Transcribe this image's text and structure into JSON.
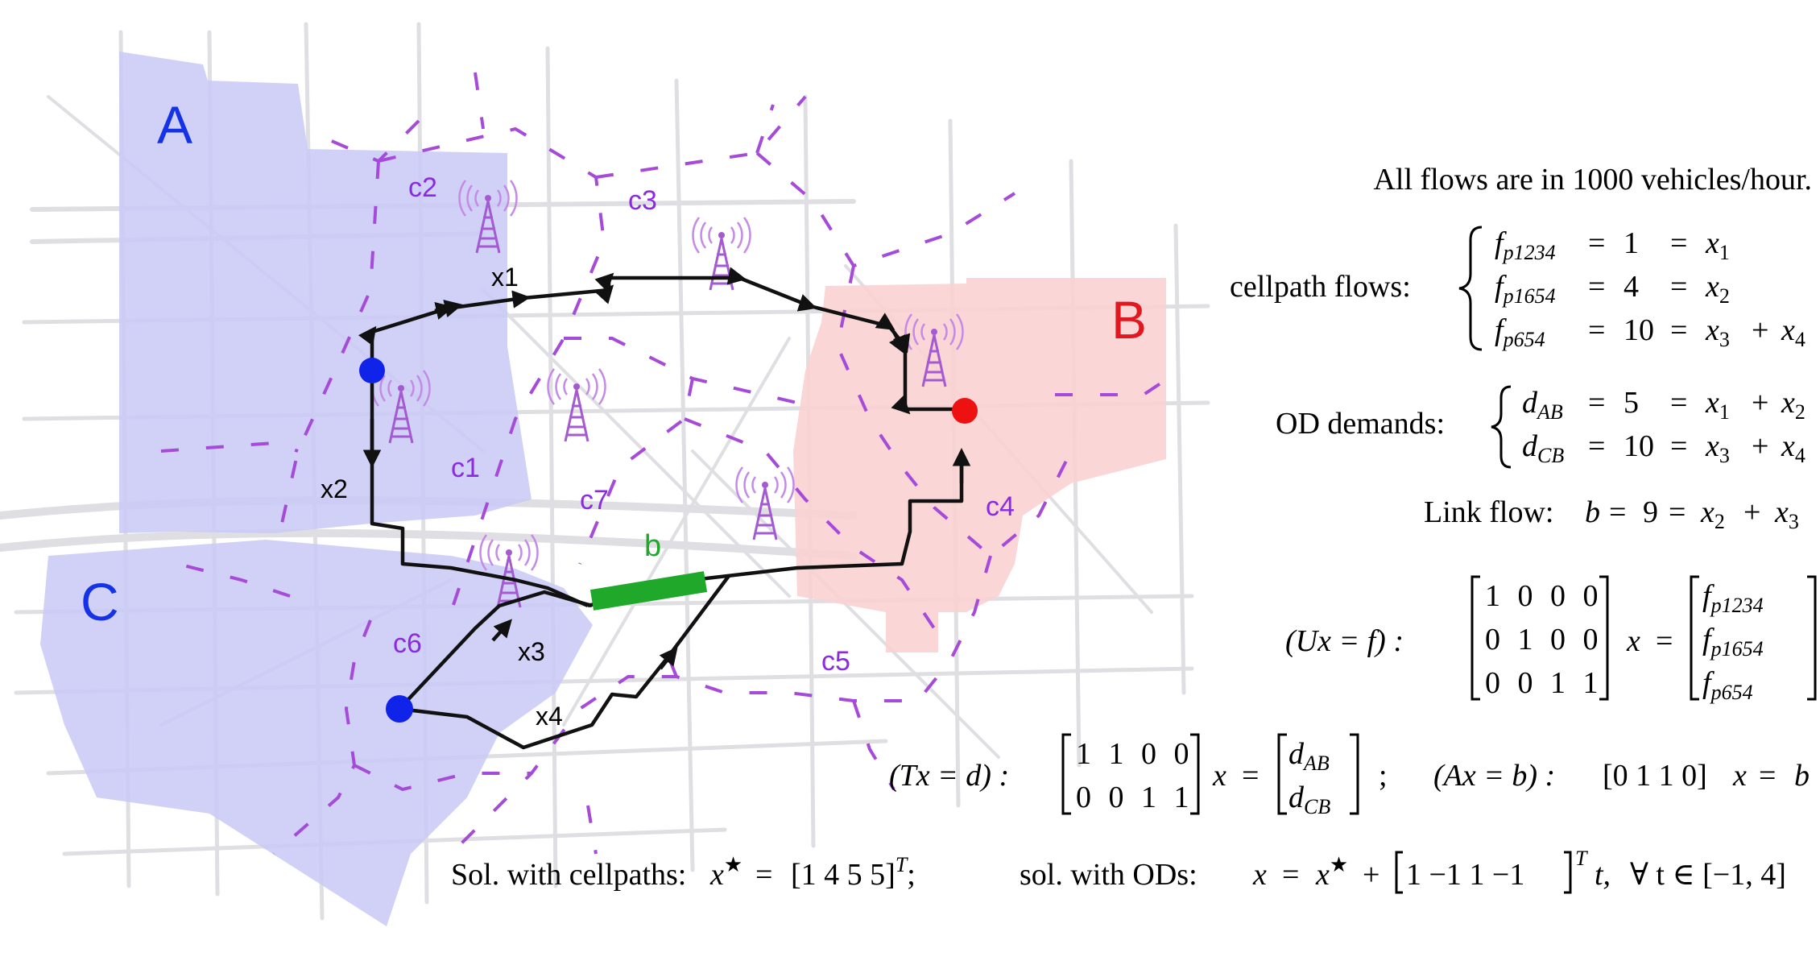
{
  "regions": {
    "A": {
      "label": "A",
      "color": "#c9c9f7"
    },
    "B": {
      "label": "B",
      "color": "#f9d2d2"
    },
    "C": {
      "label": "C",
      "color": "#c9c9f7"
    }
  },
  "colors": {
    "region_label_blue": "#1433e6",
    "region_label_red": "#e0181f",
    "cell_label": "#8a2be2",
    "voronoi": "#a64ad9",
    "link_b": "#1fa82a",
    "origin_node": "#1023e8",
    "destination_node": "#ee1111",
    "tower": "#a45ad0"
  },
  "cells": [
    "c1",
    "c2",
    "c3",
    "c4",
    "c5",
    "c6",
    "c7"
  ],
  "path_labels": [
    "x1",
    "x2",
    "x3",
    "x4"
  ],
  "link_label": "b",
  "icons": [
    "cell-tower-icon"
  ],
  "equations": {
    "units": "All flows are in 1000 vehicles/hour.",
    "cellpath_label": "cellpath flows:",
    "cellpath_rows": [
      {
        "lhs_base": "f",
        "lhs_sub": "p1234",
        "value": "1",
        "rhs": "x",
        "rhs_sub": "1",
        "rhs2": "",
        "rhs2_sub": ""
      },
      {
        "lhs_base": "f",
        "lhs_sub": "p1654",
        "value": "4",
        "rhs": "x",
        "rhs_sub": "2",
        "rhs2": "",
        "rhs2_sub": ""
      },
      {
        "lhs_base": "f",
        "lhs_sub": "p654",
        "value": "10",
        "rhs": "x",
        "rhs_sub": "3",
        "rhs2": "x",
        "rhs2_sub": "4"
      }
    ],
    "od_label": "OD demands:",
    "od_rows": [
      {
        "lhs_base": "d",
        "lhs_sub": "AB",
        "value": "5",
        "rhs": "x",
        "rhs_sub": "1",
        "rhs2": "x",
        "rhs2_sub": "2"
      },
      {
        "lhs_base": "d",
        "lhs_sub": "CB",
        "value": "10",
        "rhs": "x",
        "rhs_sub": "3",
        "rhs2": "x",
        "rhs2_sub": "4"
      }
    ],
    "link_flow_label": "Link flow:",
    "link_flow_lhs": "b",
    "link_flow_value": "9",
    "U_label": "(Ux = f) :",
    "U_matrix": [
      [
        "1",
        "0",
        "0",
        "0"
      ],
      [
        "0",
        "1",
        "0",
        "0"
      ],
      [
        "0",
        "0",
        "1",
        "1"
      ]
    ],
    "U_rhs": [
      [
        "f",
        "p1234"
      ],
      [
        "f",
        "p1654"
      ],
      [
        "f",
        "p654"
      ]
    ],
    "T_label": "(Tx = d) :",
    "T_matrix": [
      [
        "1",
        "1",
        "0",
        "0"
      ],
      [
        "0",
        "0",
        "1",
        "1"
      ]
    ],
    "T_rhs": [
      [
        "d",
        "AB"
      ],
      [
        "d",
        "CB"
      ]
    ],
    "A_label": "(Ax = b) :",
    "A_matrix": "[0 1 1 0]",
    "A_rhs": "b",
    "x_symbol": "x",
    "sol_cellpath_label": "Sol. with cellpaths:",
    "sol_cellpath_value": "[1 4 5 5]",
    "sol_od_label": "sol. with ODs:",
    "sol_od_vector": "1 −1 1 −1",
    "sol_od_domain": "∀ t ∈ [−1, 4]"
  }
}
